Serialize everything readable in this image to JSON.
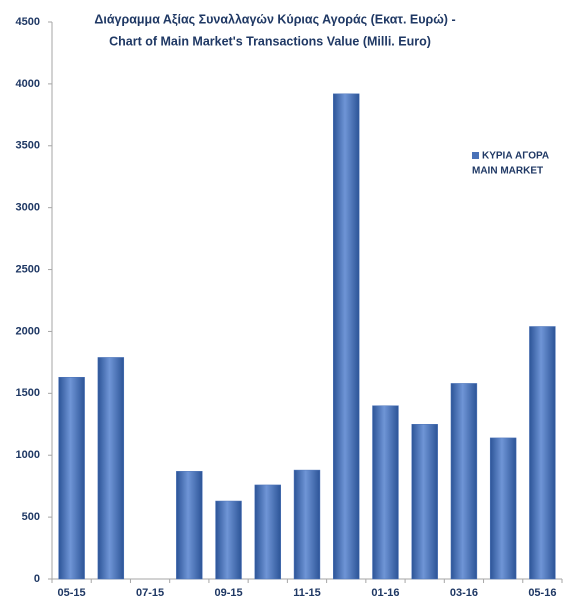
{
  "chart_data": {
    "type": "bar",
    "title": [
      "Διάγραμμα Αξίας Συναλλαγών Κύριας Αγοράς (Εκατ.  Ευρώ) -",
      "Chart of Main Market's Transactions Value (Milli. Euro)"
    ],
    "categories": [
      "05-15",
      null,
      "07-15",
      null,
      "09-15",
      null,
      "11-15",
      null,
      "01-16",
      null,
      "03-16",
      null,
      "05-16"
    ],
    "series": [
      {
        "name": [
          "ΚΥΡΙΑ ΑΓΟΡΑ",
          "MAIN MARKET"
        ],
        "color": "#4a72b8",
        "values": [
          1630,
          1790,
          0,
          870,
          630,
          760,
          880,
          3920,
          1400,
          1250,
          1580,
          1140,
          2040
        ]
      }
    ],
    "ylim": [
      0,
      4500
    ],
    "yticks": [
      0,
      500,
      1000,
      1500,
      2000,
      2500,
      3000,
      3500,
      4000,
      4500
    ],
    "grid": false,
    "legend": "upper right"
  }
}
